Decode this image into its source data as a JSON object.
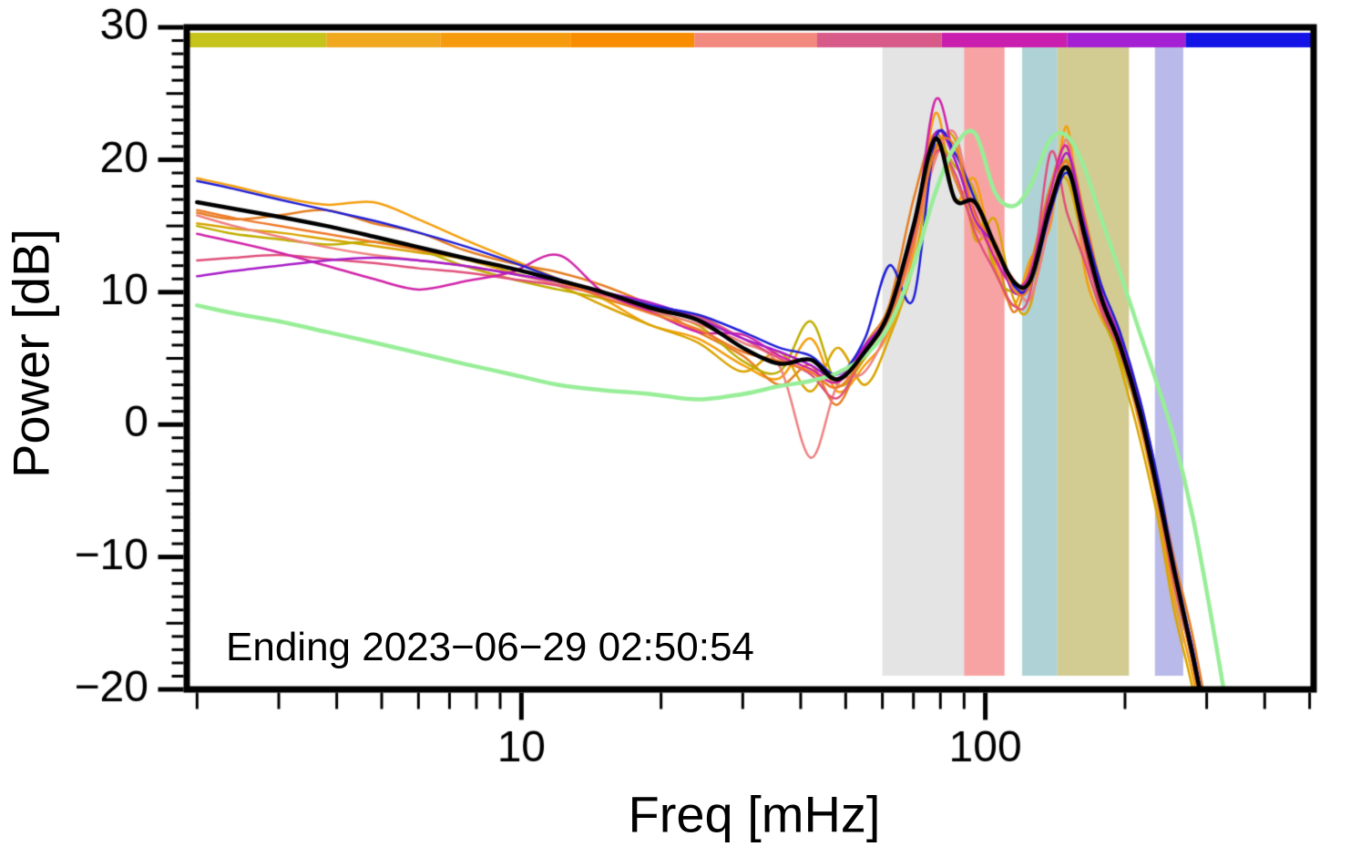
{
  "chart_data": {
    "type": "line",
    "title": "",
    "xlabel": "Freq [mHz]",
    "ylabel": "Power [dB]",
    "annotation": "Ending 2023−06−29 02:50:54",
    "x_scale": "log",
    "xlim": [
      1.9,
      510
    ],
    "ylim": [
      -20,
      30
    ],
    "grid": false,
    "legend": "none",
    "y_major_ticks": {
      "values": [
        30,
        20,
        10,
        0,
        -10,
        -20
      ],
      "labels": [
        "30",
        "20",
        "10",
        "0",
        "−10",
        "−20"
      ]
    },
    "y_minor_step": 1,
    "x_major_ticks": {
      "values": [
        10,
        100
      ],
      "labels": [
        "10",
        "100"
      ]
    },
    "x_minor_ticks": [
      2,
      3,
      4,
      5,
      6,
      7,
      8,
      9,
      20,
      30,
      40,
      50,
      60,
      70,
      80,
      90,
      200,
      300,
      400,
      500
    ],
    "frequencies_mHz": [
      2.0,
      2.4,
      3.0,
      3.8,
      4.8,
      6.0,
      7.5,
      9.5,
      12,
      15,
      19,
      24,
      30,
      36,
      42,
      48,
      55,
      62,
      70,
      78,
      86,
      95,
      105,
      115,
      125,
      138,
      150,
      163,
      178,
      195,
      215,
      235,
      255,
      280,
      305,
      330
    ],
    "series": [
      {
        "name": "orange-1",
        "color": "#f59e0b",
        "width": 2.5,
        "values": [
          18.6,
          18.0,
          17.2,
          16.6,
          16.8,
          15.5,
          14.0,
          12.5,
          11.0,
          9.5,
          7.5,
          6.5,
          4.5,
          3.5,
          6.5,
          2.5,
          4.5,
          7.0,
          13.0,
          23.5,
          17.0,
          18.5,
          12.0,
          9.0,
          12.5,
          15.0,
          22.5,
          12.0,
          8.0,
          5.5,
          0.0,
          -6.0,
          -13.0,
          -19.0,
          -26.0,
          -32.0
        ]
      },
      {
        "name": "dark-orange",
        "color": "#e67e22",
        "width": 2.5,
        "values": [
          16.0,
          15.5,
          15.8,
          16.2,
          15.2,
          14.5,
          13.2,
          12.2,
          11.5,
          10.5,
          9.0,
          7.0,
          5.2,
          3.0,
          4.5,
          1.5,
          6.0,
          9.0,
          17.0,
          22.0,
          18.5,
          15.0,
          13.0,
          8.5,
          12.0,
          18.0,
          21.0,
          16.0,
          10.5,
          7.0,
          2.0,
          -4.0,
          -10.0,
          -16.0,
          -23.0,
          -30.0
        ]
      },
      {
        "name": "gold",
        "color": "#d9a400",
        "width": 2.5,
        "values": [
          15.2,
          14.8,
          14.5,
          14.0,
          13.5,
          13.0,
          12.5,
          11.5,
          10.5,
          9.0,
          7.5,
          6.2,
          4.0,
          5.5,
          2.5,
          5.8,
          3.0,
          6.5,
          12.0,
          20.5,
          21.5,
          14.0,
          15.5,
          9.5,
          9.0,
          17.0,
          18.5,
          13.5,
          9.0,
          4.5,
          -1.0,
          -7.0,
          -14.0,
          -20.0,
          -27.0,
          -33.0
        ]
      },
      {
        "name": "olive-yellow",
        "color": "#bfae00",
        "width": 2.5,
        "values": [
          15.0,
          14.4,
          14.0,
          13.6,
          13.8,
          13.2,
          12.0,
          11.0,
          10.2,
          9.5,
          8.5,
          7.5,
          4.8,
          4.0,
          7.8,
          3.0,
          5.0,
          8.0,
          14.0,
          21.0,
          19.5,
          17.5,
          11.5,
          10.0,
          11.0,
          16.0,
          20.0,
          15.0,
          8.5,
          5.0,
          0.5,
          -5.5,
          -12.0,
          -18.0,
          -25.0,
          -31.0
        ]
      },
      {
        "name": "salmon",
        "color": "#f08080",
        "width": 2.5,
        "values": [
          15.8,
          15.0,
          14.2,
          13.4,
          12.8,
          12.4,
          12.0,
          11.4,
          10.6,
          9.8,
          8.6,
          7.6,
          6.2,
          4.4,
          -2.5,
          3.0,
          4.0,
          7.5,
          13.5,
          20.0,
          22.0,
          15.5,
          13.0,
          11.0,
          9.5,
          15.5,
          21.5,
          13.0,
          10.0,
          6.5,
          1.5,
          -4.5,
          -11.0,
          -17.0,
          -24.0,
          -30.0
        ]
      },
      {
        "name": "rose",
        "color": "#e0507a",
        "width": 2.5,
        "values": [
          12.4,
          12.6,
          12.8,
          12.5,
          12.2,
          11.8,
          11.5,
          11.0,
          10.5,
          9.8,
          9.0,
          8.2,
          6.5,
          5.0,
          3.8,
          2.0,
          5.5,
          8.0,
          14.5,
          20.5,
          19.0,
          14.5,
          11.5,
          9.0,
          10.0,
          20.5,
          16.0,
          12.5,
          8.5,
          5.5,
          0.5,
          -5.5,
          -12.0,
          -18.0,
          -25.0,
          -31.0
        ]
      },
      {
        "name": "magenta",
        "color": "#d123a8",
        "width": 2.5,
        "values": [
          14.4,
          13.8,
          13.0,
          12.0,
          11.0,
          10.2,
          10.8,
          11.5,
          12.8,
          10.0,
          8.5,
          7.0,
          6.8,
          5.2,
          4.2,
          3.2,
          5.8,
          8.2,
          14.0,
          24.5,
          20.0,
          16.0,
          12.5,
          10.5,
          11.5,
          17.5,
          21.0,
          14.0,
          9.0,
          6.0,
          1.0,
          -5.0,
          -11.5,
          -17.5,
          -24.0,
          -30.0
        ]
      },
      {
        "name": "purple",
        "color": "#a81cc8",
        "width": 2.5,
        "values": [
          11.2,
          11.6,
          12.0,
          12.4,
          12.6,
          12.4,
          12.0,
          11.4,
          10.8,
          10.0,
          9.2,
          8.0,
          6.5,
          5.5,
          4.5,
          3.5,
          6.0,
          8.5,
          15.0,
          22.0,
          20.0,
          15.5,
          13.5,
          10.0,
          11.0,
          16.5,
          20.5,
          15.5,
          10.0,
          6.5,
          1.5,
          -4.5,
          -11.0,
          -17.0,
          -24.0,
          -30.0
        ]
      },
      {
        "name": "blue",
        "color": "#1f1fd6",
        "width": 2.5,
        "values": [
          18.4,
          17.8,
          17.0,
          16.2,
          15.4,
          14.5,
          13.5,
          12.3,
          11.0,
          10.0,
          9.0,
          8.3,
          7.0,
          5.8,
          5.2,
          3.8,
          6.5,
          12.0,
          9.5,
          21.5,
          20.5,
          17.0,
          13.5,
          10.5,
          10.5,
          16.0,
          19.0,
          15.0,
          10.5,
          7.0,
          2.0,
          -4.0,
          -10.5,
          -17.0,
          -23.5,
          -30.0
        ]
      },
      {
        "name": "orange-red",
        "color": "#ef7a28",
        "width": 2.5,
        "values": [
          16.2,
          15.6,
          15.0,
          14.4,
          13.8,
          13.2,
          12.6,
          11.8,
          10.8,
          9.6,
          8.4,
          7.2,
          5.5,
          4.8,
          4.0,
          2.8,
          5.2,
          7.8,
          13.8,
          20.8,
          21.0,
          15.8,
          13.8,
          10.2,
          10.5,
          16.8,
          19.8,
          14.2,
          9.2,
          5.8,
          0.8,
          -5.2,
          -11.5,
          -18.0,
          -24.5,
          -31.0
        ]
      },
      {
        "name": "green-smooth",
        "color": "#98ee98",
        "width": 4.5,
        "values": [
          9.0,
          8.4,
          7.8,
          7.0,
          6.2,
          5.4,
          4.6,
          3.8,
          3.0,
          2.6,
          2.3,
          1.9,
          2.3,
          2.9,
          3.3,
          3.9,
          5.2,
          7.5,
          12.0,
          17.5,
          21.0,
          22.0,
          17.5,
          16.5,
          18.0,
          21.5,
          21.8,
          19.5,
          15.5,
          11.5,
          7.0,
          3.0,
          -1.0,
          -7.0,
          -14.0,
          -21.0
        ]
      },
      {
        "name": "black-mean",
        "color": "#000000",
        "width": 4.5,
        "values": [
          16.8,
          16.3,
          15.7,
          15.0,
          14.2,
          13.4,
          12.6,
          11.8,
          10.9,
          10.0,
          8.8,
          7.9,
          5.8,
          4.6,
          4.9,
          3.4,
          5.5,
          8.5,
          15.0,
          21.6,
          17.0,
          16.8,
          13.5,
          10.8,
          10.9,
          16.5,
          19.4,
          14.5,
          9.5,
          6.0,
          1.0,
          -5.0,
          -11.0,
          -17.5,
          -24.0,
          -30.0
        ]
      }
    ],
    "shaded_bands": [
      {
        "name": "band-gray",
        "f0": 60,
        "f1": 90,
        "color": "#e4e4e4"
      },
      {
        "name": "band-pink",
        "f0": 90,
        "f1": 110,
        "color": "#f8a3a3"
      },
      {
        "name": "band-teal",
        "f0": 120,
        "f1": 143,
        "color": "#aed2d6"
      },
      {
        "name": "band-olive",
        "f0": 143,
        "f1": 204,
        "color": "#d2cc93"
      },
      {
        "name": "band-lavender",
        "f0": 232,
        "f1": 267,
        "color": "#b9b9ea"
      }
    ],
    "top_bar_segments": [
      {
        "f0": 1.9,
        "f1": 3.8,
        "color": "#c6c31a"
      },
      {
        "f0": 3.8,
        "f1": 6.7,
        "color": "#f0a81e"
      },
      {
        "f0": 6.7,
        "f1": 12.8,
        "color": "#f79b0e"
      },
      {
        "f0": 12.8,
        "f1": 23.6,
        "color": "#f88d00"
      },
      {
        "f0": 23.6,
        "f1": 43.4,
        "color": "#f2897f"
      },
      {
        "f0": 43.4,
        "f1": 80.5,
        "color": "#d85a88"
      },
      {
        "f0": 80.5,
        "f1": 150,
        "color": "#ca1fae"
      },
      {
        "f0": 150,
        "f1": 270,
        "color": "#a520d2"
      },
      {
        "f0": 270,
        "f1": 510,
        "color": "#1414e6"
      }
    ],
    "axis_color": "#000000",
    "background_color": "#ffffff"
  }
}
